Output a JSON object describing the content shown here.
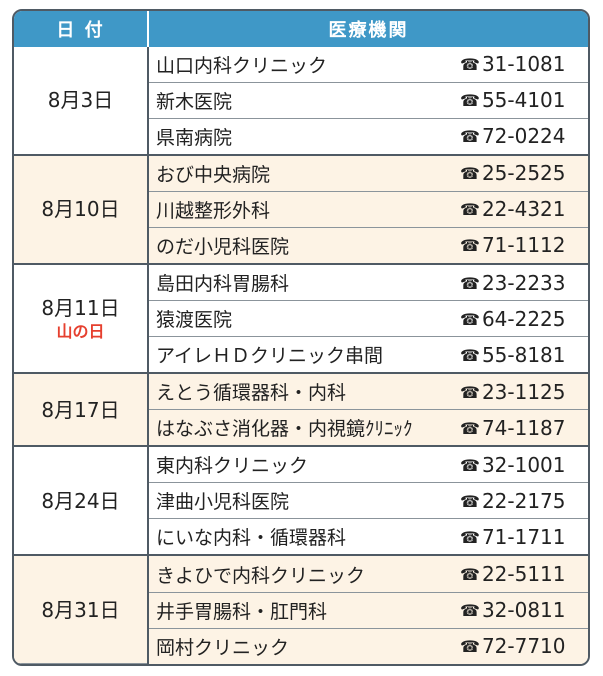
{
  "header": {
    "date_label": "日 付",
    "institution_label": "医療機関"
  },
  "tel_icon": "☎",
  "colors": {
    "header_bg": "#3f98c7",
    "tint_bg": "#fdf3e5",
    "holiday_text": "#e6402f",
    "border": "#4f5a64"
  },
  "groups": [
    {
      "date": "8月3日",
      "holiday": "",
      "rows": [
        {
          "name": "山口内科クリニック",
          "tel": "31-1081"
        },
        {
          "name": "新木医院",
          "tel": "55-4101"
        },
        {
          "name": "県南病院",
          "tel": "72-0224"
        }
      ]
    },
    {
      "date": "8月10日",
      "holiday": "",
      "rows": [
        {
          "name": "おび中央病院",
          "tel": "25-2525"
        },
        {
          "name": "川越整形外科",
          "tel": "22-4321"
        },
        {
          "name": "のだ小児科医院",
          "tel": "71-1112"
        }
      ]
    },
    {
      "date": "8月11日",
      "holiday": "山の日",
      "rows": [
        {
          "name": "島田内科胃腸科",
          "tel": "23-2233"
        },
        {
          "name": "猿渡医院",
          "tel": "64-2225"
        },
        {
          "name": "アイレＨＤクリニック串間",
          "tel": "55-8181"
        }
      ]
    },
    {
      "date": "8月17日",
      "holiday": "",
      "rows": [
        {
          "name": "えとう循環器科・内科",
          "tel": "23-1125"
        },
        {
          "name": "はなぶさ消化器・内視鏡ｸﾘﾆｯｸ",
          "tel": "74-1187"
        }
      ]
    },
    {
      "date": "8月24日",
      "holiday": "",
      "rows": [
        {
          "name": "東内科クリニック",
          "tel": "32-1001"
        },
        {
          "name": "津曲小児科医院",
          "tel": "22-2175"
        },
        {
          "name": "にいな内科・循環器科",
          "tel": "71-1711"
        }
      ]
    },
    {
      "date": "8月31日",
      "holiday": "",
      "rows": [
        {
          "name": "きよひで内科クリニック",
          "tel": "22-5111"
        },
        {
          "name": "井手胃腸科・肛門科",
          "tel": "32-0811"
        },
        {
          "name": "岡村クリニック",
          "tel": "72-7710"
        }
      ]
    }
  ]
}
